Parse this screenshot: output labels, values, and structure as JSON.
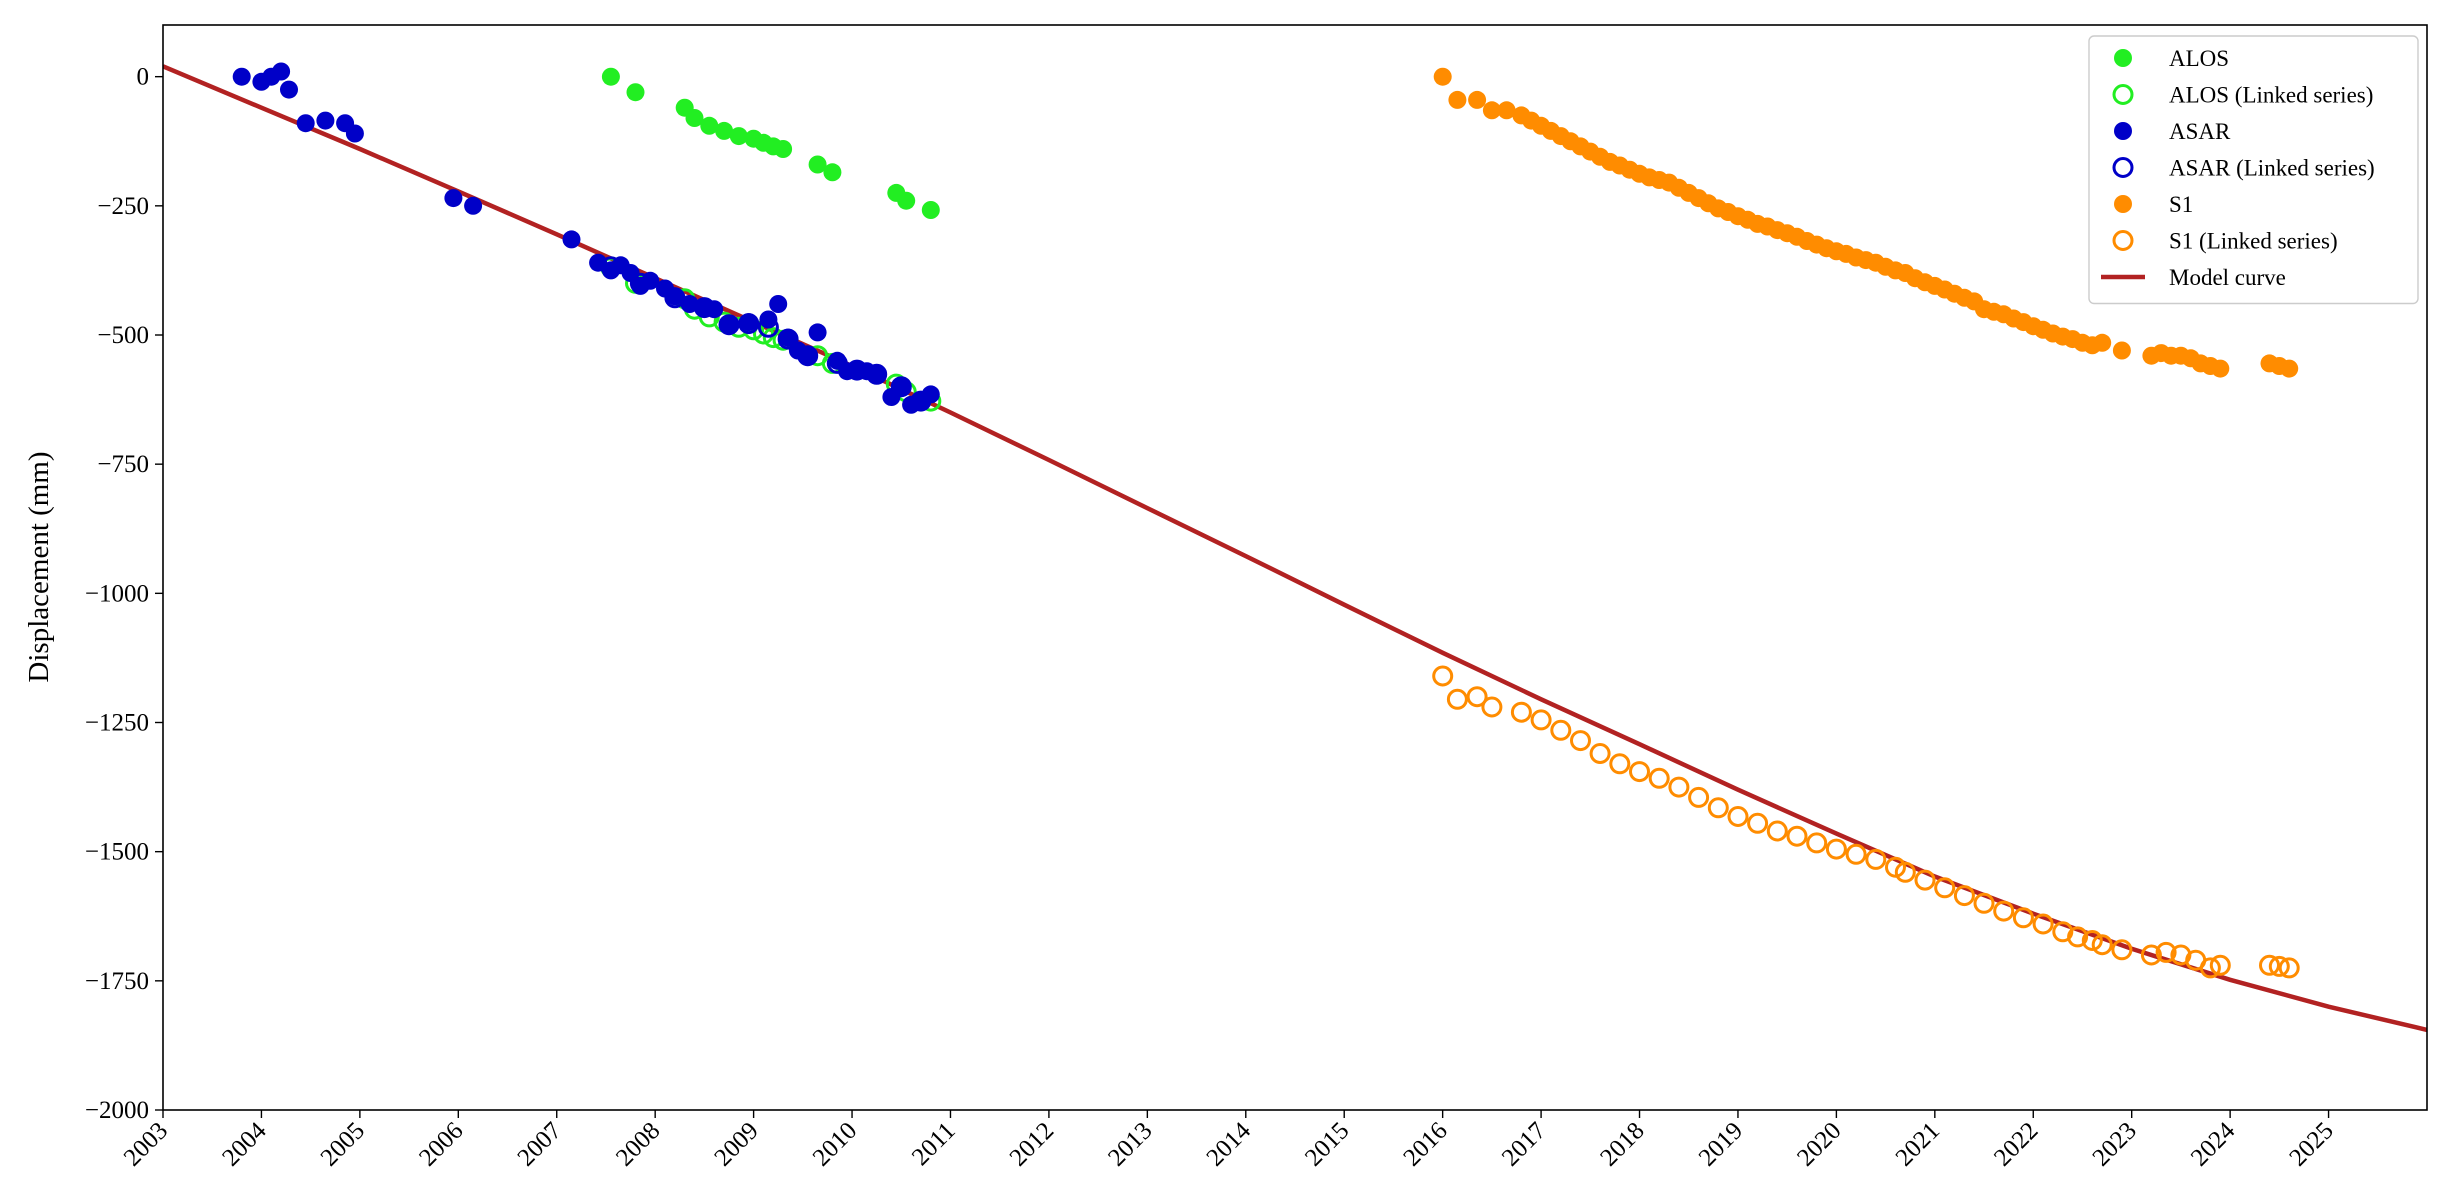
{
  "chart_data": {
    "type": "scatter",
    "title": "",
    "xlabel": "",
    "ylabel": "Displacement (mm)",
    "xlim": [
      2003.0,
      2026.0
    ],
    "ylim": [
      -2000,
      100
    ],
    "grid": false,
    "legend_position": "top-right",
    "x_ticks": [
      "2003",
      "2004",
      "2005",
      "2006",
      "2007",
      "2008",
      "2009",
      "2010",
      "2011",
      "2012",
      "2013",
      "2014",
      "2015",
      "2016",
      "2017",
      "2018",
      "2019",
      "2020",
      "2021",
      "2022",
      "2023",
      "2024",
      "2025"
    ],
    "y_ticks": [
      {
        "value": 0,
        "label": "0"
      },
      {
        "value": -250,
        "label": "−250"
      },
      {
        "value": -500,
        "label": "−500"
      },
      {
        "value": -750,
        "label": "−750"
      },
      {
        "value": -1000,
        "label": "−1000"
      },
      {
        "value": -1250,
        "label": "−1250"
      },
      {
        "value": -1500,
        "label": "−1500"
      },
      {
        "value": -1750,
        "label": "−1750"
      },
      {
        "value": -2000,
        "label": "−2000"
      }
    ],
    "legend": [
      {
        "label": "ALOS",
        "color": "#22ee22",
        "marker": "filled-circle"
      },
      {
        "label": "ALOS (Linked series)",
        "color": "#22ee22",
        "marker": "open-circle"
      },
      {
        "label": "ASAR",
        "color": "#0000c8",
        "marker": "filled-circle"
      },
      {
        "label": "ASAR (Linked series)",
        "color": "#0000c8",
        "marker": "open-circle"
      },
      {
        "label": "S1",
        "color": "#ff8c00",
        "marker": "filled-circle"
      },
      {
        "label": "S1 (Linked series)",
        "color": "#ff8c00",
        "marker": "open-circle"
      },
      {
        "label": "Model curve",
        "color": "#b22222",
        "marker": "line"
      }
    ],
    "series": [
      {
        "name": "ALOS",
        "color": "#22ee22",
        "marker": "filled",
        "x": [
          2007.55,
          2007.8,
          2008.3,
          2008.4,
          2008.55,
          2008.7,
          2008.85,
          2009.0,
          2009.1,
          2009.2,
          2009.3,
          2009.65,
          2009.8,
          2010.45,
          2010.55,
          2010.8
        ],
        "y": [
          0,
          -30,
          -60,
          -80,
          -95,
          -105,
          -115,
          -120,
          -128,
          -135,
          -140,
          -170,
          -185,
          -225,
          -240,
          -258
        ]
      },
      {
        "name": "ALOS (Linked series)",
        "color": "#22ee22",
        "marker": "open",
        "x": [
          2007.55,
          2007.8,
          2008.3,
          2008.4,
          2008.55,
          2008.7,
          2008.85,
          2009.0,
          2009.1,
          2009.2,
          2009.3,
          2009.65,
          2009.8,
          2010.45,
          2010.55,
          2010.8
        ],
        "y": [
          -370,
          -400,
          -430,
          -450,
          -465,
          -475,
          -485,
          -490,
          -498,
          -505,
          -510,
          -540,
          -555,
          -595,
          -610,
          -628
        ]
      },
      {
        "name": "ASAR",
        "color": "#0000c8",
        "marker": "filled",
        "x": [
          2003.8,
          2004.0,
          2004.1,
          2004.2,
          2004.28,
          2004.45,
          2004.65,
          2004.85,
          2004.95,
          2005.95,
          2006.15,
          2007.15,
          2007.42,
          2007.55,
          2007.65,
          2007.75,
          2007.85,
          2007.95,
          2008.1,
          2008.2,
          2008.35,
          2008.5,
          2008.6,
          2008.75,
          2008.95,
          2009.15,
          2009.25,
          2009.35,
          2009.45,
          2009.55,
          2009.65,
          2009.85,
          2009.95,
          2010.05,
          2010.15,
          2010.25,
          2010.4,
          2010.5,
          2010.6,
          2010.7,
          2010.8
        ],
        "y": [
          0,
          -10,
          0,
          10,
          -25,
          -90,
          -85,
          -90,
          -110,
          -235,
          -250,
          -315,
          -360,
          -375,
          -365,
          -380,
          -405,
          -395,
          -410,
          -425,
          -440,
          -445,
          -450,
          -480,
          -475,
          -470,
          -440,
          -505,
          -530,
          -540,
          -495,
          -550,
          -570,
          -570,
          -570,
          -575,
          -620,
          -600,
          -635,
          -630,
          -615
        ]
      },
      {
        "name": "ASAR (Linked series)",
        "color": "#0000c8",
        "marker": "open",
        "x": [
          2007.55,
          2007.85,
          2008.2,
          2008.5,
          2008.75,
          2008.95,
          2009.15,
          2009.35,
          2009.55,
          2009.85,
          2010.05,
          2010.25,
          2010.5,
          2010.7
        ],
        "y": [
          -368,
          -400,
          -428,
          -447,
          -480,
          -478,
          -485,
          -508,
          -540,
          -555,
          -568,
          -576,
          -600,
          -628
        ]
      },
      {
        "name": "S1",
        "color": "#ff8c00",
        "marker": "filled",
        "x": [
          2016.0,
          2016.15,
          2016.35,
          2016.5,
          2016.65,
          2016.8,
          2016.9,
          2017.0,
          2017.1,
          2017.2,
          2017.3,
          2017.4,
          2017.5,
          2017.6,
          2017.7,
          2017.8,
          2017.9,
          2018.0,
          2018.1,
          2018.2,
          2018.3,
          2018.4,
          2018.5,
          2018.6,
          2018.7,
          2018.8,
          2018.9,
          2019.0,
          2019.1,
          2019.2,
          2019.3,
          2019.4,
          2019.5,
          2019.6,
          2019.7,
          2019.8,
          2019.9,
          2020.0,
          2020.1,
          2020.2,
          2020.3,
          2020.4,
          2020.5,
          2020.6,
          2020.7,
          2020.8,
          2020.9,
          2021.0,
          2021.1,
          2021.2,
          2021.3,
          2021.4,
          2021.5,
          2021.6,
          2021.7,
          2021.8,
          2021.9,
          2022.0,
          2022.1,
          2022.2,
          2022.3,
          2022.4,
          2022.5,
          2022.6,
          2022.7,
          2022.9,
          2023.2,
          2023.3,
          2023.4,
          2023.5,
          2023.6,
          2023.7,
          2023.8,
          2023.9,
          2024.4,
          2024.5,
          2024.6
        ],
        "y": [
          0,
          -45,
          -45,
          -65,
          -65,
          -75,
          -85,
          -95,
          -105,
          -115,
          -125,
          -135,
          -145,
          -155,
          -165,
          -172,
          -180,
          -188,
          -195,
          -200,
          -205,
          -215,
          -225,
          -235,
          -245,
          -255,
          -262,
          -270,
          -277,
          -285,
          -290,
          -297,
          -303,
          -310,
          -318,
          -325,
          -332,
          -338,
          -343,
          -350,
          -355,
          -360,
          -368,
          -375,
          -380,
          -390,
          -398,
          -405,
          -412,
          -420,
          -428,
          -435,
          -450,
          -455,
          -460,
          -468,
          -475,
          -483,
          -490,
          -497,
          -503,
          -508,
          -515,
          -520,
          -515,
          -530,
          -540,
          -535,
          -540,
          -540,
          -545,
          -555,
          -560,
          -565,
          -555,
          -560,
          -565
        ]
      },
      {
        "name": "S1 (Linked series)",
        "color": "#ff8c00",
        "marker": "open",
        "x": [
          2016.0,
          2016.15,
          2016.35,
          2016.5,
          2016.8,
          2017.0,
          2017.2,
          2017.4,
          2017.6,
          2017.8,
          2018.0,
          2018.2,
          2018.4,
          2018.6,
          2018.8,
          2019.0,
          2019.2,
          2019.4,
          2019.6,
          2019.8,
          2020.0,
          2020.2,
          2020.4,
          2020.6,
          2020.7,
          2020.9,
          2021.1,
          2021.3,
          2021.5,
          2021.7,
          2021.9,
          2022.1,
          2022.3,
          2022.45,
          2022.6,
          2022.7,
          2022.9,
          2023.2,
          2023.35,
          2023.5,
          2023.65,
          2023.8,
          2023.9,
          2024.4,
          2024.5,
          2024.6
        ],
        "y": [
          -1160,
          -1205,
          -1200,
          -1220,
          -1230,
          -1245,
          -1265,
          -1285,
          -1310,
          -1330,
          -1345,
          -1358,
          -1375,
          -1395,
          -1415,
          -1432,
          -1445,
          -1460,
          -1470,
          -1483,
          -1495,
          -1505,
          -1515,
          -1530,
          -1540,
          -1555,
          -1570,
          -1585,
          -1600,
          -1615,
          -1628,
          -1640,
          -1655,
          -1665,
          -1672,
          -1680,
          -1690,
          -1700,
          -1695,
          -1700,
          -1710,
          -1725,
          -1720,
          -1720,
          -1722,
          -1725
        ]
      }
    ],
    "model_curve": {
      "name": "Model curve",
      "color": "#b22222",
      "x": [
        2003.0,
        2004.0,
        2005.0,
        2006.0,
        2007.0,
        2008.0,
        2009.0,
        2010.0,
        2011.0,
        2012.0,
        2013.0,
        2014.0,
        2015.0,
        2016.0,
        2017.0,
        2018.0,
        2019.0,
        2020.0,
        2021.0,
        2022.0,
        2023.0,
        2024.0,
        2025.0,
        2026.0
      ],
      "y": [
        20,
        -60,
        -140,
        -222,
        -305,
        -390,
        -475,
        -560,
        -650,
        -742,
        -835,
        -928,
        -1022,
        -1115,
        -1205,
        -1292,
        -1380,
        -1465,
        -1548,
        -1620,
        -1688,
        -1748,
        -1800,
        -1845
      ]
    }
  }
}
